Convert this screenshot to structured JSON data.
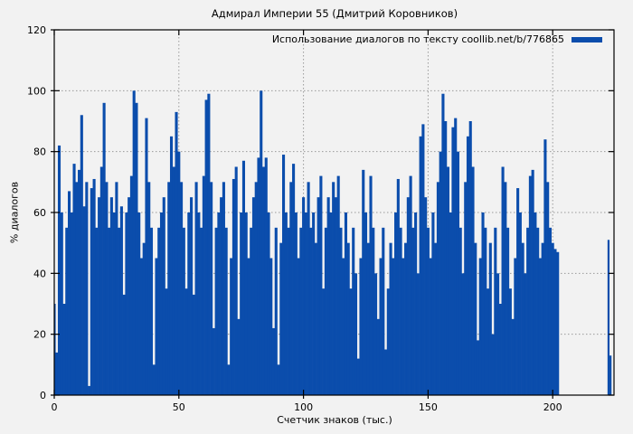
{
  "chart_data": {
    "type": "bar",
    "title": "Адмирал Империи 55 (Дмитрий Коровников)",
    "legend": "Использование диалогов по тексту coollib.net/b/776865",
    "xlabel": "Счетчик знаков (тыс.)",
    "ylabel": "% диалогов",
    "xlim": [
      0,
      224.6
    ],
    "ylim": [
      0,
      120
    ],
    "xticks": [
      0,
      50,
      100,
      150,
      200
    ],
    "yticks": [
      0,
      20,
      40,
      60,
      80,
      100,
      120
    ],
    "grid": true,
    "legend_position": "top-right",
    "bar_color": "#0b4dac",
    "background_color": "#f2f2f2",
    "x_start": 0,
    "x_step": 1,
    "values": [
      30,
      14,
      82,
      60,
      30,
      55,
      67,
      60,
      76,
      70,
      74,
      92,
      62,
      70,
      3,
      68,
      71,
      55,
      65,
      75,
      96,
      70,
      55,
      65,
      60,
      70,
      55,
      62,
      33,
      60,
      65,
      72,
      100,
      96,
      60,
      45,
      50,
      91,
      70,
      55,
      10,
      45,
      55,
      60,
      65,
      35,
      70,
      85,
      75,
      93,
      80,
      70,
      55,
      35,
      60,
      65,
      33,
      70,
      60,
      55,
      72,
      97,
      99,
      70,
      22,
      55,
      60,
      65,
      70,
      55,
      10,
      45,
      71,
      75,
      25,
      60,
      77,
      60,
      45,
      55,
      65,
      70,
      78,
      100,
      75,
      78,
      60,
      45,
      22,
      55,
      10,
      50,
      79,
      60,
      55,
      70,
      76,
      60,
      45,
      55,
      65,
      60,
      70,
      55,
      60,
      50,
      65,
      72,
      35,
      55,
      65,
      60,
      70,
      65,
      72,
      55,
      45,
      60,
      50,
      35,
      55,
      40,
      12,
      45,
      74,
      60,
      50,
      72,
      55,
      40,
      25,
      45,
      55,
      15,
      35,
      50,
      45,
      60,
      71,
      55,
      45,
      50,
      65,
      72,
      55,
      60,
      40,
      85,
      89,
      65,
      55,
      45,
      60,
      50,
      70,
      80,
      99,
      90,
      75,
      60,
      88,
      91,
      80,
      55,
      40,
      70,
      85,
      90,
      75,
      50,
      18,
      45,
      60,
      55,
      35,
      50,
      20,
      55,
      40,
      30,
      75,
      70,
      55,
      35,
      25,
      45,
      68,
      60,
      50,
      40,
      55,
      72,
      74,
      60,
      55,
      45,
      50,
      84,
      70,
      55,
      50,
      48,
      47
    ],
    "isolated_points": [
      {
        "x": 222.4,
        "y": 51
      },
      {
        "x": 223.2,
        "y": 13
      }
    ]
  }
}
